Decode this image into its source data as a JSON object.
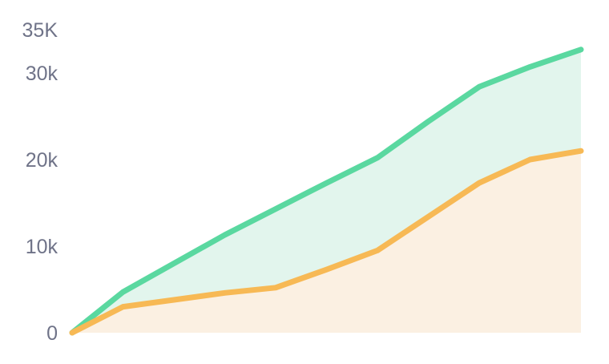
{
  "chart_data": {
    "type": "area",
    "x": [
      0,
      1,
      2,
      3,
      4,
      5,
      6,
      7,
      8,
      9,
      10
    ],
    "xlabel": "",
    "ylabel": "",
    "ylim": [
      0,
      35000
    ],
    "yticks": [
      {
        "value": 0,
        "label": "0"
      },
      {
        "value": 10000,
        "label": "10k"
      },
      {
        "value": 20000,
        "label": "20k"
      },
      {
        "value": 30000,
        "label": "30k"
      },
      {
        "value": 35000,
        "label": "35K"
      }
    ],
    "grid": false,
    "legend": "none",
    "series": [
      {
        "color": "#5ad8a0",
        "fill": "#e2f5ed",
        "values": [
          0,
          4700,
          8000,
          11300,
          14300,
          17300,
          20200,
          24400,
          28400,
          30700,
          32700
        ]
      },
      {
        "color": "#f7b955",
        "fill": "#fbf0e2",
        "values": [
          0,
          3000,
          3800,
          4600,
          5200,
          7300,
          9500,
          13400,
          17300,
          20000,
          21000
        ]
      }
    ]
  }
}
